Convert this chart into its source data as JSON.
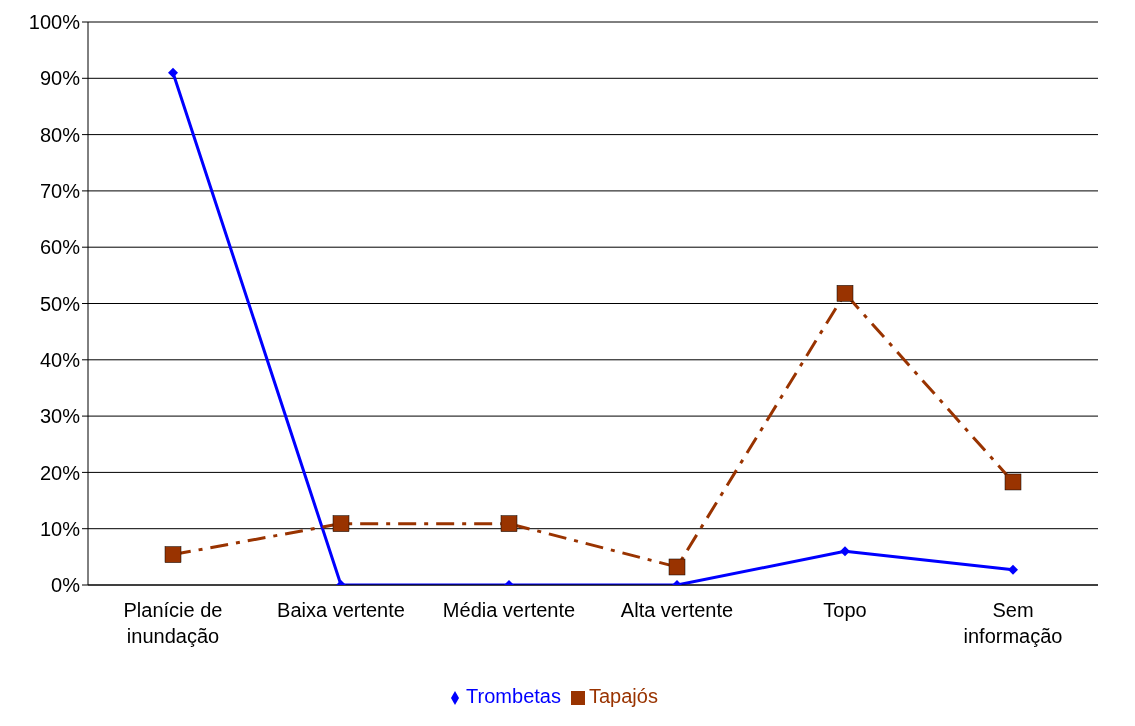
{
  "chart_data": {
    "type": "line",
    "categories": [
      "Planície de inundação",
      "Baixa vertente",
      "Média vertente",
      "Alta vertente",
      "Topo",
      "Sem informação"
    ],
    "series": [
      {
        "name": "Trombetas",
        "color": "#0000ff",
        "marker": "diamond",
        "line_style": "solid",
        "values": [
          91,
          0,
          0,
          0,
          6,
          2.7
        ]
      },
      {
        "name": "Tapajós",
        "color": "#993300",
        "marker": "square",
        "line_style": "dashed",
        "values": [
          5.4,
          10.9,
          10.9,
          3.2,
          51.8,
          18.3
        ]
      }
    ],
    "ylim": [
      0,
      100
    ],
    "yticks": [
      {
        "value": 0,
        "label": "0%"
      },
      {
        "value": 10,
        "label": "10%"
      },
      {
        "value": 20,
        "label": "20%"
      },
      {
        "value": 30,
        "label": "30%"
      },
      {
        "value": 40,
        "label": "40%"
      },
      {
        "value": 50,
        "label": "50%"
      },
      {
        "value": 60,
        "label": "60%"
      },
      {
        "value": 70,
        "label": "70%"
      },
      {
        "value": 80,
        "label": "80%"
      },
      {
        "value": 90,
        "label": "90%"
      },
      {
        "value": 100,
        "label": "100%"
      }
    ],
    "grid": "y",
    "legend": "bottom"
  }
}
